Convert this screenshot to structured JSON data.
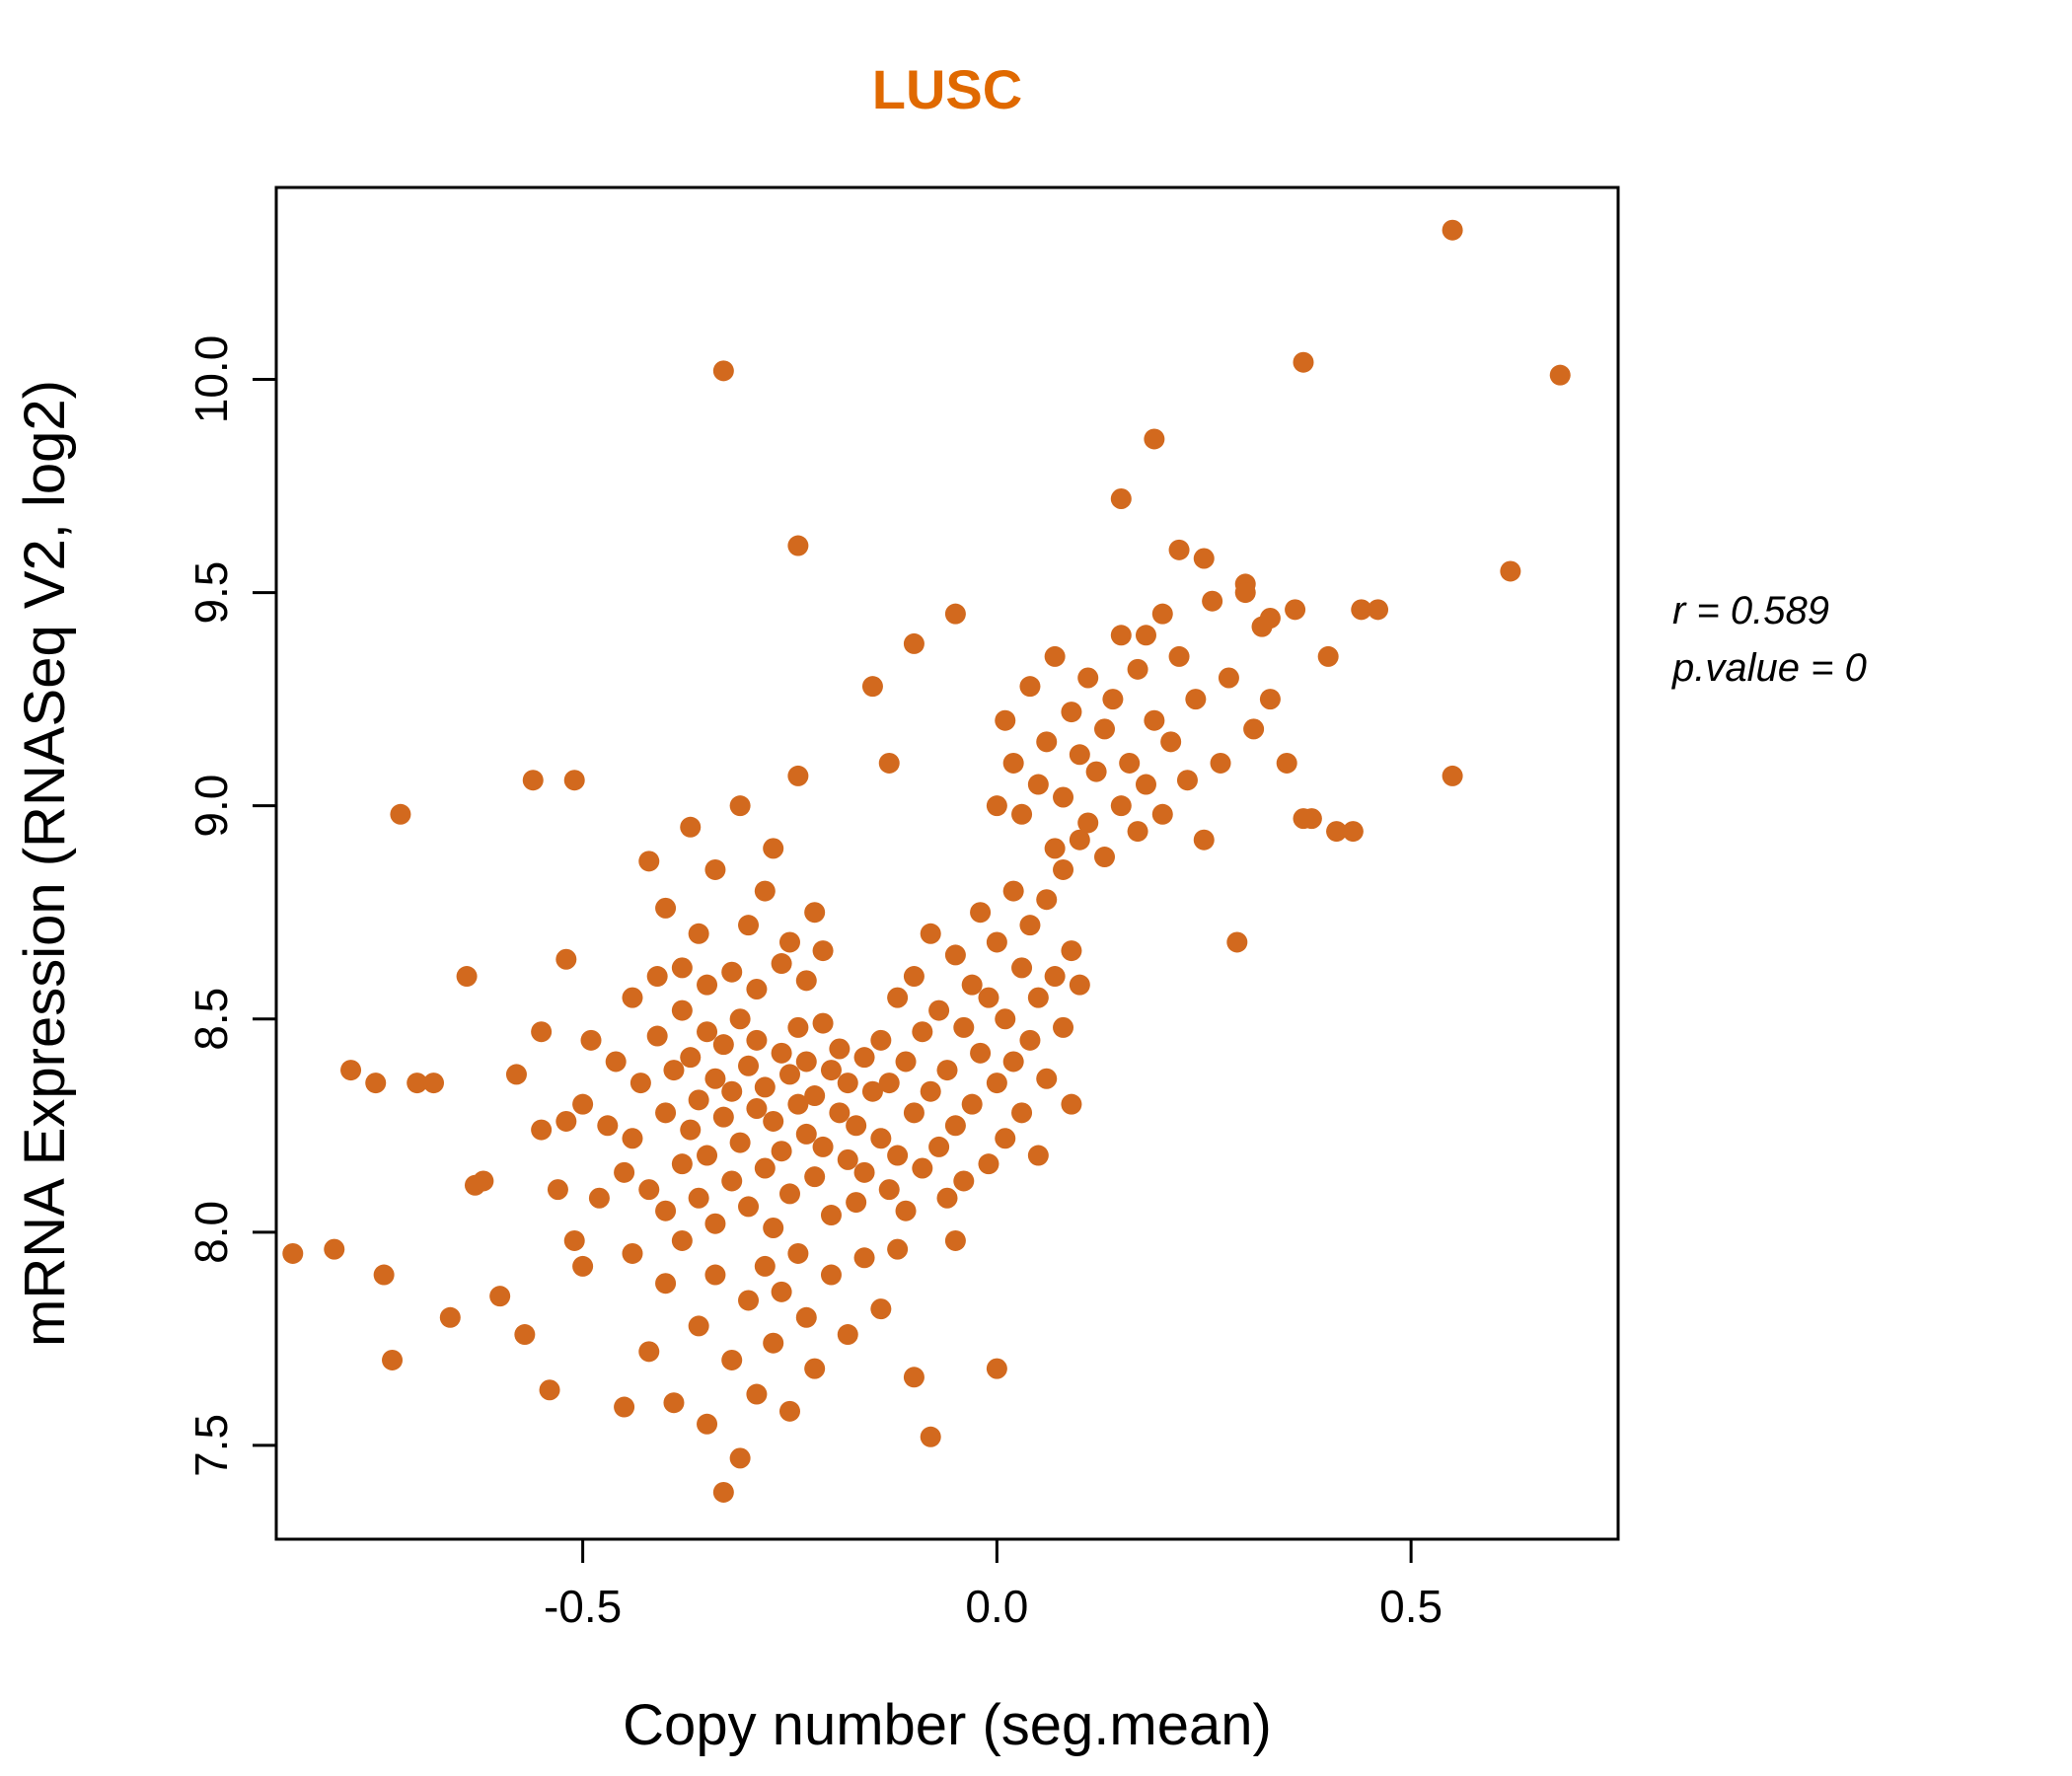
{
  "chart_data": {
    "type": "scatter",
    "title": "LUSC",
    "xlabel": "Copy number (seg.mean)",
    "ylabel": "mRNA Expression (RNASeq V2, log2)",
    "xlim": [
      -0.87,
      0.75
    ],
    "ylim": [
      7.28,
      10.45
    ],
    "x_ticks": [
      {
        "v": -0.5,
        "label": "-0.5"
      },
      {
        "v": 0.0,
        "label": "0.0"
      },
      {
        "v": 0.5,
        "label": "0.5"
      }
    ],
    "y_ticks": [
      {
        "v": 7.5,
        "label": "7.5"
      },
      {
        "v": 8.0,
        "label": "8.0"
      },
      {
        "v": 8.5,
        "label": "8.5"
      },
      {
        "v": 9.0,
        "label": "9.0"
      },
      {
        "v": 9.5,
        "label": "9.5"
      },
      {
        "v": 10.0,
        "label": "10.0"
      }
    ],
    "grid": false,
    "legend": "none",
    "title_color": "#E06900",
    "point_color": "#D2691E",
    "annotation": {
      "line1": "r = 0.589",
      "line2": "p.value = 0"
    },
    "points": [
      [
        -0.44,
        8.22
      ],
      [
        -0.43,
        8.35
      ],
      [
        -0.42,
        8.1
      ],
      [
        -0.41,
        8.46
      ],
      [
        -0.4,
        8.28
      ],
      [
        -0.4,
        8.05
      ],
      [
        -0.39,
        8.38
      ],
      [
        -0.38,
        8.16
      ],
      [
        -0.38,
        8.52
      ],
      [
        -0.37,
        8.24
      ],
      [
        -0.37,
        8.41
      ],
      [
        -0.36,
        8.08
      ],
      [
        -0.36,
        8.31
      ],
      [
        -0.35,
        8.47
      ],
      [
        -0.35,
        8.18
      ],
      [
        -0.34,
        8.36
      ],
      [
        -0.34,
        8.02
      ],
      [
        -0.33,
        8.27
      ],
      [
        -0.33,
        8.44
      ],
      [
        -0.32,
        8.12
      ],
      [
        -0.32,
        8.33
      ],
      [
        -0.31,
        8.5
      ],
      [
        -0.31,
        8.21
      ],
      [
        -0.3,
        8.39
      ],
      [
        -0.3,
        8.06
      ],
      [
        -0.29,
        8.29
      ],
      [
        -0.29,
        8.45
      ],
      [
        -0.28,
        8.15
      ],
      [
        -0.28,
        8.34
      ],
      [
        -0.27,
        8.01
      ],
      [
        -0.27,
        8.26
      ],
      [
        -0.26,
        8.42
      ],
      [
        -0.26,
        8.19
      ],
      [
        -0.25,
        8.37
      ],
      [
        -0.25,
        8.09
      ],
      [
        -0.24,
        8.3
      ],
      [
        -0.24,
        8.48
      ],
      [
        -0.23,
        8.23
      ],
      [
        -0.23,
        8.4
      ],
      [
        -0.22,
        8.13
      ],
      [
        -0.22,
        8.32
      ],
      [
        -0.21,
        8.49
      ],
      [
        -0.21,
        8.2
      ],
      [
        -0.2,
        8.38
      ],
      [
        -0.2,
        8.04
      ],
      [
        -0.19,
        8.28
      ],
      [
        -0.19,
        8.43
      ],
      [
        -0.18,
        8.17
      ],
      [
        -0.18,
        8.35
      ],
      [
        -0.17,
        8.07
      ],
      [
        -0.17,
        8.25
      ],
      [
        -0.16,
        8.41
      ],
      [
        -0.16,
        8.14
      ],
      [
        -0.15,
        8.33
      ],
      [
        -0.45,
        8.14
      ],
      [
        -0.46,
        8.4
      ],
      [
        -0.47,
        8.25
      ],
      [
        -0.48,
        8.08
      ],
      [
        -0.49,
        8.45
      ],
      [
        -0.5,
        8.3
      ],
      [
        -0.44,
        8.55
      ],
      [
        -0.41,
        8.6
      ],
      [
        -0.38,
        8.62
      ],
      [
        -0.35,
        8.58
      ],
      [
        -0.32,
        8.61
      ],
      [
        -0.29,
        8.57
      ],
      [
        -0.26,
        8.63
      ],
      [
        -0.23,
        8.59
      ],
      [
        -0.36,
        8.7
      ],
      [
        -0.3,
        8.72
      ],
      [
        -0.25,
        8.68
      ],
      [
        -0.4,
        8.76
      ],
      [
        -0.34,
        8.85
      ],
      [
        -0.28,
        8.8
      ],
      [
        -0.22,
        8.75
      ],
      [
        -0.42,
        8.87
      ],
      [
        -0.37,
        8.95
      ],
      [
        -0.31,
        9.0
      ],
      [
        -0.27,
        8.9
      ],
      [
        -0.21,
        8.66
      ],
      [
        -0.14,
        8.22
      ],
      [
        -0.14,
        8.45
      ],
      [
        -0.13,
        8.1
      ],
      [
        -0.13,
        8.35
      ],
      [
        -0.12,
        8.55
      ],
      [
        -0.12,
        8.18
      ],
      [
        -0.11,
        8.4
      ],
      [
        -0.11,
        8.05
      ],
      [
        -0.1,
        8.28
      ],
      [
        -0.1,
        8.6
      ],
      [
        -0.09,
        8.15
      ],
      [
        -0.09,
        8.47
      ],
      [
        -0.08,
        8.33
      ],
      [
        -0.08,
        8.7
      ],
      [
        -0.07,
        8.2
      ],
      [
        -0.07,
        8.52
      ],
      [
        -0.06,
        8.08
      ],
      [
        -0.06,
        8.38
      ],
      [
        -0.05,
        8.65
      ],
      [
        -0.05,
        8.25
      ],
      [
        -0.04,
        8.48
      ],
      [
        -0.04,
        8.12
      ],
      [
        -0.03,
        8.58
      ],
      [
        -0.03,
        8.3
      ],
      [
        -0.02,
        8.75
      ],
      [
        -0.02,
        8.42
      ],
      [
        -0.01,
        8.16
      ],
      [
        -0.01,
        8.55
      ],
      [
        0.0,
        8.35
      ],
      [
        0.0,
        8.68
      ],
      [
        0.01,
        8.22
      ],
      [
        0.01,
        8.5
      ],
      [
        0.02,
        8.8
      ],
      [
        0.02,
        8.4
      ],
      [
        0.03,
        8.62
      ],
      [
        0.03,
        8.28
      ],
      [
        0.04,
        8.72
      ],
      [
        0.04,
        8.45
      ],
      [
        0.05,
        8.55
      ],
      [
        0.05,
        8.18
      ],
      [
        0.06,
        8.78
      ],
      [
        0.06,
        8.36
      ],
      [
        0.07,
        8.6
      ],
      [
        0.07,
        8.9
      ],
      [
        0.08,
        8.48
      ],
      [
        0.08,
        8.85
      ],
      [
        0.09,
        8.66
      ],
      [
        0.09,
        8.3
      ],
      [
        0.1,
        8.92
      ],
      [
        0.1,
        8.58
      ],
      [
        0.0,
        9.0
      ],
      [
        0.01,
        9.2
      ],
      [
        0.02,
        9.1
      ],
      [
        0.03,
        8.98
      ],
      [
        0.04,
        9.28
      ],
      [
        0.05,
        9.05
      ],
      [
        0.06,
        9.15
      ],
      [
        0.07,
        9.35
      ],
      [
        0.08,
        9.02
      ],
      [
        0.09,
        9.22
      ],
      [
        0.1,
        9.12
      ],
      [
        0.11,
        8.96
      ],
      [
        0.11,
        9.3
      ],
      [
        0.12,
        9.08
      ],
      [
        0.13,
        9.18
      ],
      [
        0.13,
        8.88
      ],
      [
        0.14,
        9.25
      ],
      [
        0.15,
        9.0
      ],
      [
        0.15,
        9.4
      ],
      [
        0.16,
        9.1
      ],
      [
        0.17,
        8.94
      ],
      [
        0.17,
        9.32
      ],
      [
        0.18,
        9.05
      ],
      [
        0.19,
        9.2
      ],
      [
        0.2,
        8.98
      ],
      [
        0.2,
        9.45
      ],
      [
        0.21,
        9.15
      ],
      [
        0.22,
        9.35
      ],
      [
        0.23,
        9.06
      ],
      [
        0.24,
        9.25
      ],
      [
        0.25,
        8.92
      ],
      [
        0.26,
        9.48
      ],
      [
        0.27,
        9.1
      ],
      [
        0.28,
        9.3
      ],
      [
        0.29,
        8.68
      ],
      [
        0.3,
        9.52
      ],
      [
        0.31,
        9.18
      ],
      [
        0.32,
        9.42
      ],
      [
        0.33,
        9.25
      ],
      [
        0.35,
        9.1
      ],
      [
        0.36,
        9.46
      ],
      [
        0.38,
        8.97
      ],
      [
        0.4,
        9.35
      ],
      [
        0.43,
        8.94
      ],
      [
        0.44,
        9.46
      ],
      [
        -0.85,
        7.95
      ],
      [
        -0.8,
        7.96
      ],
      [
        -0.78,
        8.38
      ],
      [
        -0.75,
        8.35
      ],
      [
        -0.74,
        7.9
      ],
      [
        -0.73,
        7.7
      ],
      [
        -0.72,
        8.98
      ],
      [
        -0.7,
        8.35
      ],
      [
        -0.68,
        8.35
      ],
      [
        -0.66,
        7.8
      ],
      [
        -0.64,
        8.6
      ],
      [
        -0.63,
        8.11
      ],
      [
        -0.62,
        8.12
      ],
      [
        -0.6,
        7.85
      ],
      [
        -0.58,
        8.37
      ],
      [
        -0.57,
        7.76
      ],
      [
        -0.56,
        9.06
      ],
      [
        -0.55,
        8.47
      ],
      [
        -0.54,
        7.63
      ],
      [
        -0.53,
        8.1
      ],
      [
        -0.52,
        8.26
      ],
      [
        -0.51,
        7.98
      ],
      [
        -0.5,
        7.92
      ],
      [
        -0.55,
        8.24
      ],
      [
        -0.52,
        8.64
      ],
      [
        -0.45,
        7.59
      ],
      [
        -0.44,
        7.95
      ],
      [
        -0.42,
        7.72
      ],
      [
        -0.4,
        7.88
      ],
      [
        -0.39,
        7.6
      ],
      [
        -0.38,
        7.98
      ],
      [
        -0.36,
        7.78
      ],
      [
        -0.35,
        7.55
      ],
      [
        -0.34,
        7.9
      ],
      [
        -0.33,
        7.39
      ],
      [
        -0.32,
        7.7
      ],
      [
        -0.31,
        7.47
      ],
      [
        -0.3,
        7.84
      ],
      [
        -0.29,
        7.62
      ],
      [
        -0.28,
        7.92
      ],
      [
        -0.27,
        7.74
      ],
      [
        -0.26,
        7.86
      ],
      [
        -0.25,
        7.58
      ],
      [
        -0.24,
        7.95
      ],
      [
        -0.23,
        7.8
      ],
      [
        -0.22,
        7.68
      ],
      [
        -0.2,
        7.9
      ],
      [
        -0.18,
        7.76
      ],
      [
        -0.16,
        7.94
      ],
      [
        -0.14,
        7.82
      ],
      [
        -0.12,
        7.96
      ],
      [
        -0.1,
        7.66
      ],
      [
        -0.08,
        7.52
      ],
      [
        -0.05,
        7.98
      ],
      [
        0.0,
        7.68
      ],
      [
        0.3,
        9.5
      ],
      [
        0.33,
        9.44
      ],
      [
        0.37,
        10.04
      ],
      [
        0.37,
        8.97
      ],
      [
        0.41,
        8.94
      ],
      [
        0.46,
        9.46
      ],
      [
        0.55,
        10.35
      ],
      [
        0.55,
        9.07
      ],
      [
        0.62,
        9.55
      ],
      [
        0.68,
        10.01
      ],
      [
        0.25,
        9.58
      ],
      [
        0.22,
        9.6
      ],
      [
        0.19,
        9.86
      ],
      [
        0.15,
        9.72
      ],
      [
        0.18,
        9.4
      ],
      [
        -0.33,
        10.02
      ],
      [
        -0.24,
        9.61
      ],
      [
        -0.24,
        9.07
      ],
      [
        -0.51,
        9.06
      ],
      [
        -0.1,
        9.38
      ],
      [
        -0.15,
        9.28
      ],
      [
        -0.13,
        9.1
      ],
      [
        -0.05,
        9.45
      ]
    ]
  }
}
